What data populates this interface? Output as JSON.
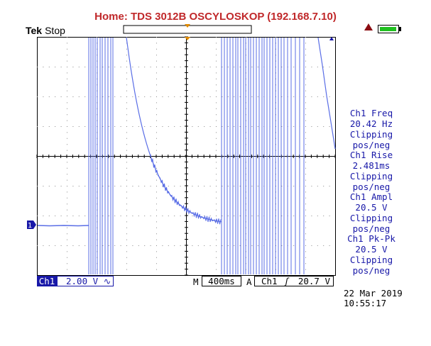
{
  "window": {
    "title": "Home:  TDS 3012B  OSCYLOSKOP  (192.168.7.10)"
  },
  "status": {
    "brand": "Tek",
    "state": "Stop"
  },
  "icons": {
    "trigger_warning": "warning-triangle-icon",
    "battery": "battery-icon"
  },
  "colors": {
    "trace": "#5a6ee6",
    "accent": "#c0282a",
    "text_blue": "#1818a8",
    "trigger_orange": "#e08a00"
  },
  "ground_marker": "1",
  "measurements": [
    {
      "label": "Ch1 Freq",
      "value": "20.42 Hz",
      "status1": "Clipping",
      "status2": "pos/neg"
    },
    {
      "label": "Ch1 Rise",
      "value": "2.481ms",
      "status1": "Clipping",
      "status2": "pos/neg"
    },
    {
      "label": "Ch1 Ampl",
      "value": "20.5 V",
      "status1": "Clipping",
      "status2": "pos/neg"
    },
    {
      "label": "Ch1 Pk-Pk",
      "value": "20.5 V",
      "status1": "Clipping",
      "status2": "pos/neg"
    }
  ],
  "channel": {
    "label": "Ch1",
    "volts_div": "2.00 V",
    "coupling_symbol": "∿"
  },
  "timebase": {
    "prefix": "M",
    "value": "400ms"
  },
  "trigger": {
    "prefix": "A",
    "source": "Ch1",
    "slope_symbol": "ʃ",
    "level": "20.7 V"
  },
  "datetime": {
    "date": "22 Mar  2019",
    "time": "10:55:17"
  }
}
